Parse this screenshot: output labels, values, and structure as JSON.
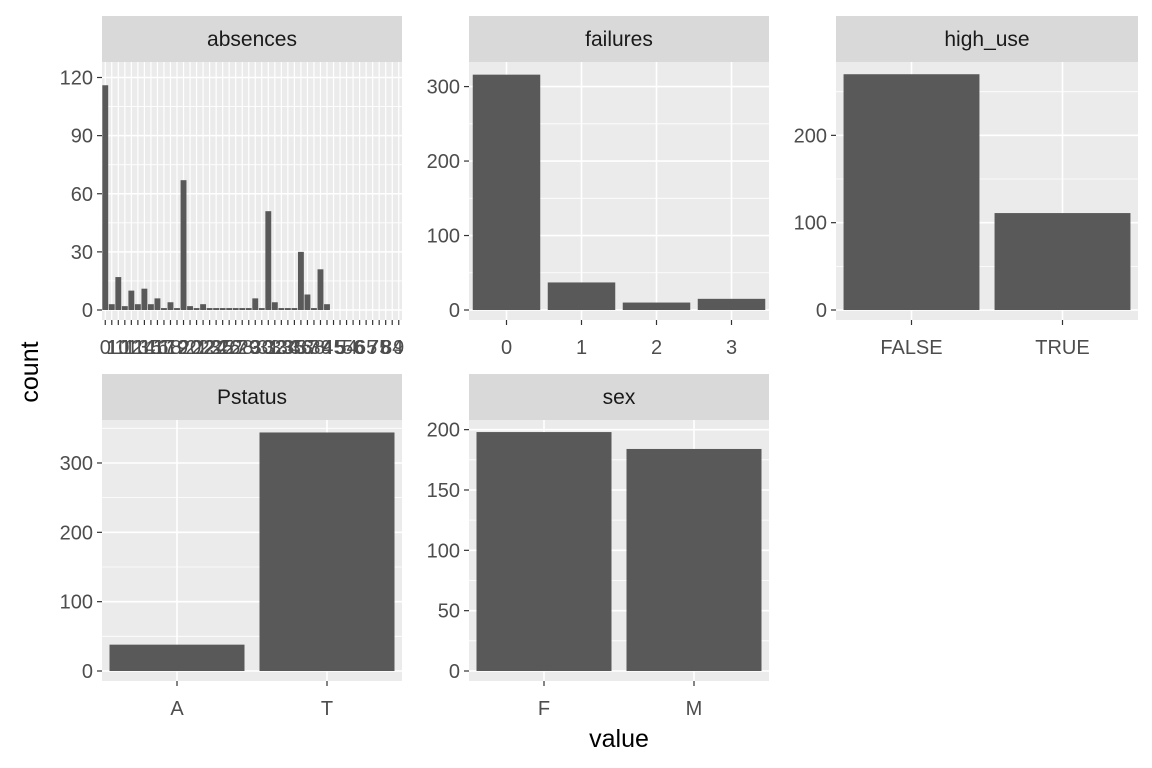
{
  "axis_titles": {
    "x": "value",
    "y": "count"
  },
  "colors": {
    "panel_bg": "#ebebeb",
    "strip_bg": "#d9d9d9",
    "bar": "#595959",
    "grid": "#ffffff",
    "tick": "#333333",
    "tick_text": "#4d4d4d"
  },
  "chart_data": [
    {
      "type": "bar",
      "facet": "absences",
      "categories": [
        "0",
        "1",
        "2",
        "3",
        "4",
        "5",
        "6",
        "7",
        "8",
        "9",
        "10",
        "11",
        "12",
        "13",
        "14",
        "15",
        "16",
        "17",
        "18",
        "19",
        "20",
        "21",
        "22",
        "23",
        "24",
        "25",
        "26",
        "27",
        "28",
        "29",
        "30",
        "31",
        "32",
        "33",
        "34",
        "35",
        "36",
        "37",
        "38",
        "39",
        "40",
        "41",
        "42",
        "43",
        "44",
        "45"
      ],
      "x_tick_labels": [
        "0",
        "1",
        "10",
        "11",
        "12",
        "13",
        "14",
        "15",
        "16",
        "17",
        "18",
        "19",
        "2",
        "20",
        "21",
        "22",
        "23",
        "24",
        "25",
        "26",
        "27",
        "28",
        "29",
        "3",
        "30",
        "31",
        "32",
        "33",
        "34",
        "35",
        "36",
        "37",
        "38",
        "39",
        "4",
        "45",
        "5",
        "54",
        "56",
        "6",
        "65",
        "7",
        "75",
        "8",
        "84",
        "9"
      ],
      "values": [
        116,
        3,
        17,
        2,
        10,
        3,
        11,
        3,
        6,
        1,
        4,
        1,
        67,
        2,
        1,
        3,
        1,
        1,
        1,
        1,
        1,
        1,
        1,
        6,
        1,
        51,
        4,
        1,
        1,
        1,
        30,
        8,
        1,
        21,
        3,
        0,
        0,
        0,
        0,
        0,
        0,
        0,
        0,
        0,
        0,
        0
      ],
      "yticks": [
        0,
        30,
        60,
        90,
        120
      ],
      "ylim": [
        0,
        128
      ]
    },
    {
      "type": "bar",
      "facet": "failures",
      "categories": [
        "0",
        "1",
        "2",
        "3"
      ],
      "values": [
        316,
        37,
        10,
        15
      ],
      "yticks": [
        0,
        100,
        200,
        300
      ],
      "ylim": [
        0,
        333
      ]
    },
    {
      "type": "bar",
      "facet": "high_use",
      "categories": [
        "FALSE",
        "TRUE"
      ],
      "values": [
        270,
        111
      ],
      "yticks": [
        0,
        100,
        200
      ],
      "ylim": [
        0,
        284
      ]
    },
    {
      "type": "bar",
      "facet": "Pstatus",
      "categories": [
        "A",
        "T"
      ],
      "values": [
        38,
        344
      ],
      "yticks": [
        0,
        100,
        200,
        300
      ],
      "ylim": [
        0,
        362
      ]
    },
    {
      "type": "bar",
      "facet": "sex",
      "categories": [
        "F",
        "M"
      ],
      "values": [
        198,
        184
      ],
      "yticks": [
        0,
        50,
        100,
        150,
        200
      ],
      "ylim": [
        0,
        208
      ]
    }
  ]
}
